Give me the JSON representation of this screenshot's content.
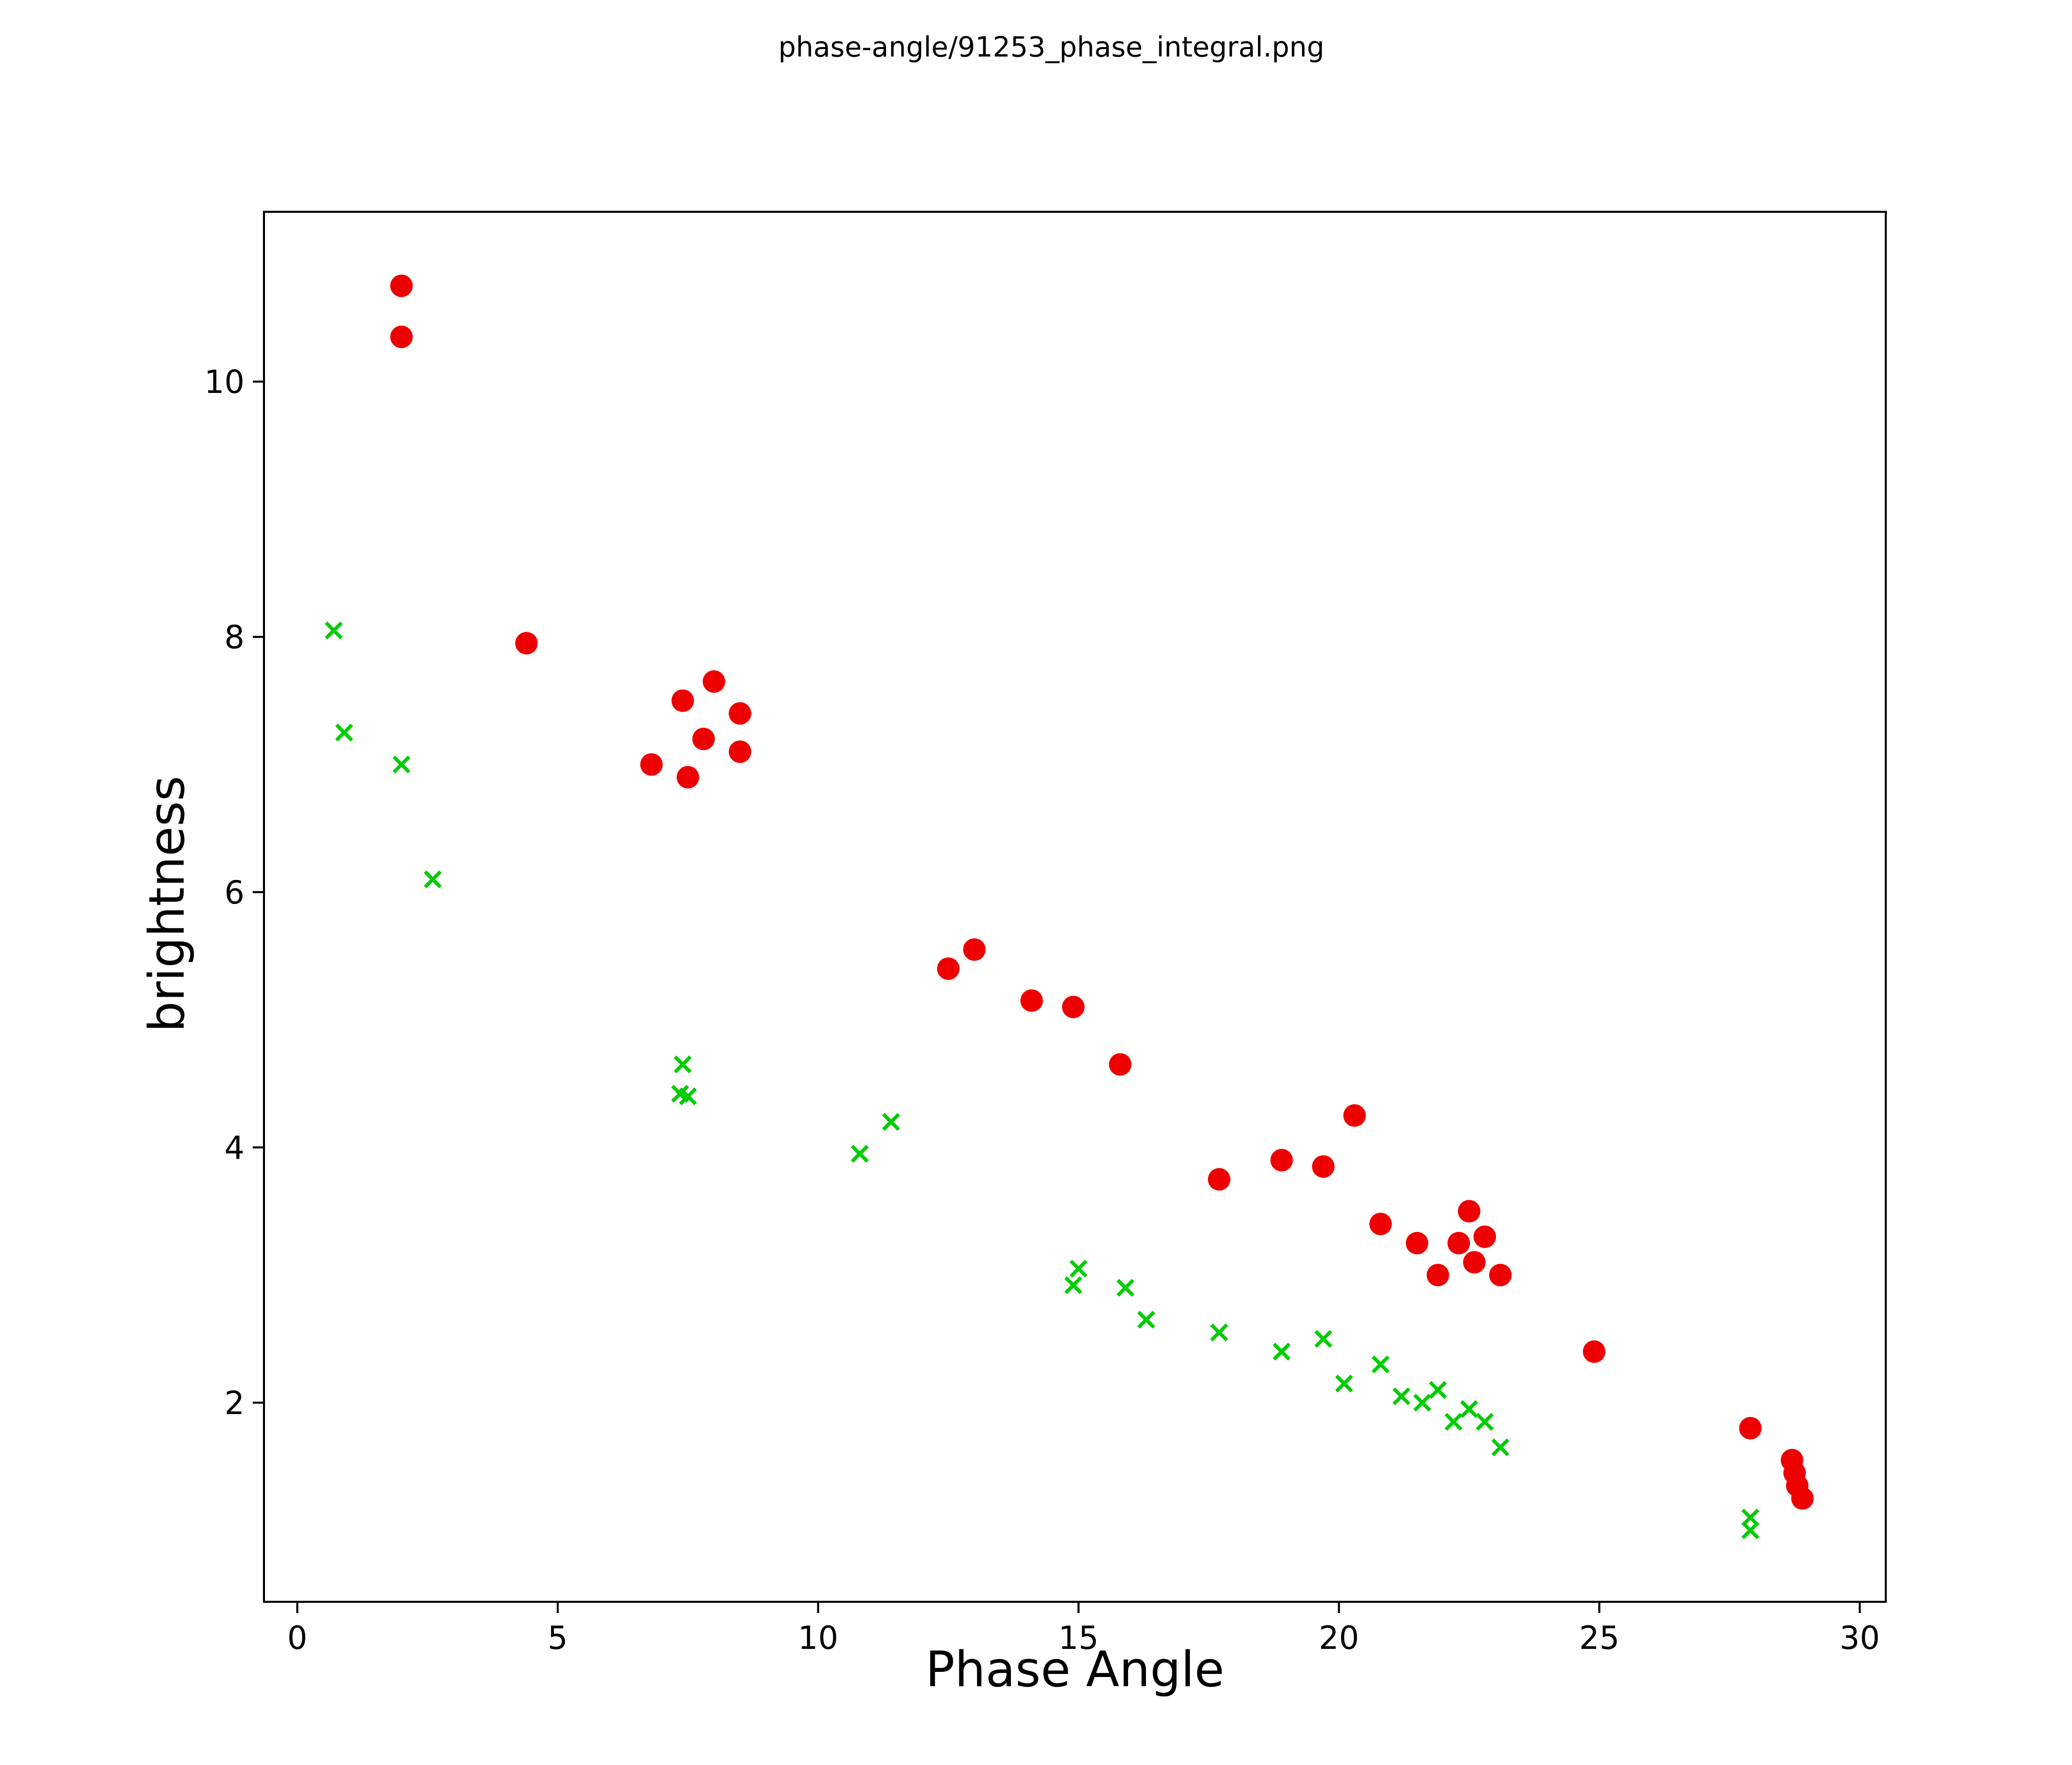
{
  "chart_data": {
    "type": "scatter",
    "title": "phase-angle/91253_phase_integral.png",
    "xlabel": "Phase Angle",
    "ylabel": "brightness",
    "xlim": [
      -0.64,
      30.5
    ],
    "ylim": [
      0.44,
      11.33
    ],
    "xticks": [
      0,
      5,
      10,
      15,
      20,
      25,
      30
    ],
    "yticks": [
      2,
      4,
      6,
      8,
      10
    ],
    "grid": false,
    "legend": "none",
    "series": [
      {
        "name": "red-circles",
        "marker": "circle",
        "color": "#ee0000",
        "points": [
          [
            2.0,
            10.75
          ],
          [
            2.0,
            10.35
          ],
          [
            4.4,
            7.95
          ],
          [
            7.4,
            7.5
          ],
          [
            8.0,
            7.65
          ],
          [
            7.8,
            7.2
          ],
          [
            8.5,
            7.4
          ],
          [
            6.8,
            7.0
          ],
          [
            7.5,
            6.9
          ],
          [
            8.5,
            7.1
          ],
          [
            12.5,
            5.4
          ],
          [
            13.0,
            5.55
          ],
          [
            14.1,
            5.15
          ],
          [
            14.9,
            5.1
          ],
          [
            15.8,
            4.65
          ],
          [
            20.3,
            4.25
          ],
          [
            18.9,
            3.9
          ],
          [
            19.7,
            3.85
          ],
          [
            17.7,
            3.75
          ],
          [
            20.8,
            3.4
          ],
          [
            22.5,
            3.5
          ],
          [
            21.5,
            3.25
          ],
          [
            22.3,
            3.25
          ],
          [
            22.8,
            3.3
          ],
          [
            21.9,
            3.0
          ],
          [
            22.6,
            3.1
          ],
          [
            23.1,
            3.0
          ],
          [
            24.9,
            2.4
          ],
          [
            27.9,
            1.8
          ],
          [
            28.7,
            1.55
          ],
          [
            28.75,
            1.45
          ],
          [
            28.8,
            1.35
          ],
          [
            28.9,
            1.25
          ]
        ]
      },
      {
        "name": "green-crosses",
        "marker": "x",
        "color": "#00cc00",
        "points": [
          [
            0.7,
            8.05
          ],
          [
            0.9,
            7.25
          ],
          [
            2.0,
            7.0
          ],
          [
            2.6,
            6.1
          ],
          [
            7.4,
            4.65
          ],
          [
            7.35,
            4.42
          ],
          [
            7.5,
            4.4
          ],
          [
            11.4,
            4.2
          ],
          [
            10.8,
            3.95
          ],
          [
            15.0,
            3.05
          ],
          [
            14.9,
            2.92
          ],
          [
            15.9,
            2.9
          ],
          [
            16.3,
            2.65
          ],
          [
            17.7,
            2.55
          ],
          [
            18.9,
            2.4
          ],
          [
            19.7,
            2.5
          ],
          [
            20.1,
            2.15
          ],
          [
            20.8,
            2.3
          ],
          [
            21.2,
            2.05
          ],
          [
            21.6,
            2.0
          ],
          [
            21.9,
            2.1
          ],
          [
            22.2,
            1.85
          ],
          [
            22.5,
            1.95
          ],
          [
            22.8,
            1.85
          ],
          [
            23.1,
            1.65
          ],
          [
            27.9,
            1.1
          ],
          [
            27.9,
            1.0
          ]
        ]
      }
    ]
  }
}
